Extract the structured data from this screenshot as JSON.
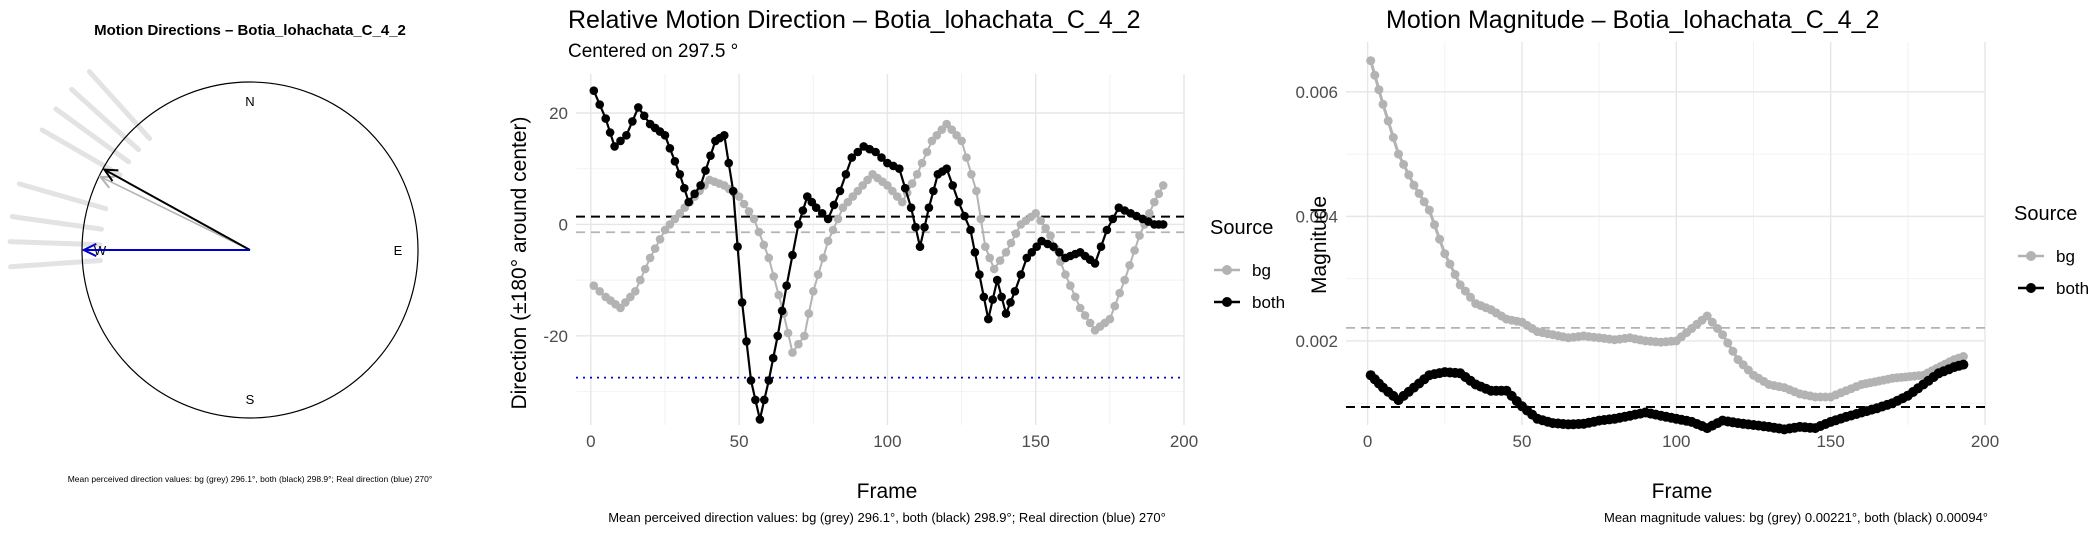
{
  "colors": {
    "bg": "#b3b3b3",
    "both": "#000000",
    "real": "#0000cc",
    "compass_ray": "#e3e3e3"
  },
  "panels": {
    "compass": {
      "title": "Motion Directions – Botia_lohachata_C_4_2",
      "labels": {
        "n": "N",
        "e": "E",
        "s": "S",
        "w": "W"
      },
      "caption": "Mean perceived direction values: bg (grey) 296.1°, both (black) 298.9°; Real direction (blue) 270°"
    },
    "direction": {
      "title": "Relative Motion Direction – Botia_lohachata_C_4_2",
      "subtitle": "Centered on  297.5 °",
      "caption": "Mean perceived direction values: bg (grey) 296.1°, both (black) 298.9°; Real direction (blue) 270°"
    },
    "magnitude": {
      "title": "Motion Magnitude – Botia_lohachata_C_4_2",
      "caption": "Mean magnitude values: bg (grey) 0.00221°, both (black) 0.00094°"
    }
  },
  "legend": {
    "title": "Source",
    "items": [
      "bg",
      "both"
    ]
  },
  "chart_data": [
    {
      "type": "compass",
      "title": "Motion Directions – Botia_lohachata_C_4_2",
      "arrows_deg": [
        {
          "name": "bg",
          "direction": 296.1
        },
        {
          "name": "both",
          "direction": 298.9
        },
        {
          "name": "real",
          "direction": 270
        }
      ],
      "background_rays_deg": [
        300,
        306,
        312,
        318,
        286,
        278,
        272,
        266
      ]
    },
    {
      "type": "line",
      "title": "Relative Motion Direction – Botia_lohachata_C_4_2",
      "subtitle": "Centered on  297.5 °",
      "xlabel": "Frame",
      "ylabel": "Direction (±180° around center)",
      "xlim": [
        -5,
        200
      ],
      "ylim": [
        -36,
        27
      ],
      "xticks": [
        0,
        50,
        100,
        150,
        200
      ],
      "yticks": [
        -20,
        0,
        20
      ],
      "series": [
        {
          "name": "bg",
          "points": [
            [
              1,
              -11
            ],
            [
              5,
              -13
            ],
            [
              10,
              -15
            ],
            [
              15,
              -12
            ],
            [
              20,
              -6
            ],
            [
              25,
              -1
            ],
            [
              30,
              2
            ],
            [
              35,
              5
            ],
            [
              40,
              8
            ],
            [
              45,
              7
            ],
            [
              50,
              5
            ],
            [
              55,
              1
            ],
            [
              60,
              -6
            ],
            [
              65,
              -16
            ],
            [
              68,
              -23
            ],
            [
              72,
              -20
            ],
            [
              75,
              -12
            ],
            [
              80,
              -3
            ],
            [
              85,
              3
            ],
            [
              90,
              6
            ],
            [
              95,
              9
            ],
            [
              100,
              7
            ],
            [
              105,
              4
            ],
            [
              110,
              9
            ],
            [
              115,
              15
            ],
            [
              120,
              18
            ],
            [
              125,
              15
            ],
            [
              130,
              6
            ],
            [
              133,
              -4
            ],
            [
              136,
              -8
            ],
            [
              140,
              -5
            ],
            [
              145,
              0
            ],
            [
              150,
              2
            ],
            [
              155,
              -2
            ],
            [
              160,
              -9
            ],
            [
              165,
              -15
            ],
            [
              170,
              -19
            ],
            [
              175,
              -17
            ],
            [
              180,
              -10
            ],
            [
              185,
              -2
            ],
            [
              190,
              4
            ],
            [
              193,
              7
            ]
          ]
        },
        {
          "name": "both",
          "points": [
            [
              1,
              24
            ],
            [
              5,
              19
            ],
            [
              8,
              14
            ],
            [
              12,
              16
            ],
            [
              16,
              21
            ],
            [
              20,
              18
            ],
            [
              25,
              16
            ],
            [
              30,
              9
            ],
            [
              33,
              4
            ],
            [
              37,
              7
            ],
            [
              42,
              15
            ],
            [
              45,
              16
            ],
            [
              48,
              6
            ],
            [
              51,
              -14
            ],
            [
              54,
              -28
            ],
            [
              57,
              -35
            ],
            [
              60,
              -28
            ],
            [
              63,
              -20
            ],
            [
              66,
              -11
            ],
            [
              70,
              0
            ],
            [
              73,
              5
            ],
            [
              76,
              3
            ],
            [
              80,
              1
            ],
            [
              84,
              6
            ],
            [
              88,
              12
            ],
            [
              92,
              14
            ],
            [
              96,
              13
            ],
            [
              100,
              11
            ],
            [
              104,
              10
            ],
            [
              108,
              3
            ],
            [
              111,
              -4
            ],
            [
              114,
              3
            ],
            [
              117,
              9
            ],
            [
              120,
              10
            ],
            [
              124,
              4
            ],
            [
              128,
              -1
            ],
            [
              131,
              -9
            ],
            [
              134,
              -17
            ],
            [
              137,
              -10
            ],
            [
              140,
              -16
            ],
            [
              143,
              -12
            ],
            [
              147,
              -6
            ],
            [
              152,
              -3
            ],
            [
              156,
              -4
            ],
            [
              160,
              -6
            ],
            [
              165,
              -5
            ],
            [
              170,
              -7
            ],
            [
              174,
              -1
            ],
            [
              178,
              3
            ],
            [
              182,
              2
            ],
            [
              186,
              1
            ],
            [
              190,
              0
            ],
            [
              193,
              0
            ]
          ]
        }
      ],
      "hlines": [
        {
          "name": "both-mean",
          "y": 1.4,
          "color": "#000000",
          "style": "dashed"
        },
        {
          "name": "bg-mean",
          "y": -1.4,
          "color": "#b3b3b3",
          "style": "dashed"
        },
        {
          "name": "real",
          "y": -27.5,
          "color": "#0000cc",
          "style": "dotted"
        }
      ]
    },
    {
      "type": "line",
      "title": "Motion Magnitude – Botia_lohachata_C_4_2",
      "xlabel": "Frame",
      "ylabel": "Magnitude",
      "xlim": [
        -7,
        200
      ],
      "ylim": [
        0.00065,
        0.0068
      ],
      "xticks": [
        0,
        50,
        100,
        150,
        200
      ],
      "yticks": [
        0.002,
        0.004,
        0.006
      ],
      "ytick_labels": [
        "0.002",
        "0.004",
        "0.006"
      ],
      "series": [
        {
          "name": "bg",
          "points": [
            [
              1,
              0.0065
            ],
            [
              5,
              0.0058
            ],
            [
              10,
              0.005
            ],
            [
              15,
              0.0045
            ],
            [
              20,
              0.0041
            ],
            [
              25,
              0.0034
            ],
            [
              30,
              0.0029
            ],
            [
              35,
              0.0026
            ],
            [
              40,
              0.0025
            ],
            [
              45,
              0.00235
            ],
            [
              50,
              0.0023
            ],
            [
              55,
              0.00215
            ],
            [
              60,
              0.0021
            ],
            [
              65,
              0.00205
            ],
            [
              70,
              0.00208
            ],
            [
              75,
              0.00205
            ],
            [
              80,
              0.00202
            ],
            [
              85,
              0.00205
            ],
            [
              90,
              0.002
            ],
            [
              95,
              0.00198
            ],
            [
              100,
              0.002
            ],
            [
              105,
              0.0022
            ],
            [
              110,
              0.0024
            ],
            [
              115,
              0.0021
            ],
            [
              120,
              0.0017
            ],
            [
              125,
              0.00145
            ],
            [
              130,
              0.0013
            ],
            [
              135,
              0.00125
            ],
            [
              140,
              0.00115
            ],
            [
              145,
              0.0011
            ],
            [
              150,
              0.0011
            ],
            [
              155,
              0.0012
            ],
            [
              160,
              0.0013
            ],
            [
              170,
              0.0014
            ],
            [
              180,
              0.00145
            ],
            [
              190,
              0.0017
            ],
            [
              193,
              0.00175
            ]
          ]
        },
        {
          "name": "both",
          "points": [
            [
              1,
              0.00145
            ],
            [
              5,
              0.00125
            ],
            [
              10,
              0.00105
            ],
            [
              15,
              0.00125
            ],
            [
              20,
              0.00145
            ],
            [
              25,
              0.0015
            ],
            [
              30,
              0.00148
            ],
            [
              35,
              0.0013
            ],
            [
              40,
              0.0012
            ],
            [
              45,
              0.0012
            ],
            [
              50,
              0.00095
            ],
            [
              55,
              0.00075
            ],
            [
              60,
              0.00068
            ],
            [
              65,
              0.00066
            ],
            [
              70,
              0.00067
            ],
            [
              75,
              0.00072
            ],
            [
              80,
              0.00075
            ],
            [
              85,
              0.0008
            ],
            [
              90,
              0.00085
            ],
            [
              95,
              0.0008
            ],
            [
              100,
              0.00075
            ],
            [
              105,
              0.0007
            ],
            [
              110,
              0.0006
            ],
            [
              115,
              0.00072
            ],
            [
              120,
              0.00068
            ],
            [
              125,
              0.00065
            ],
            [
              130,
              0.00062
            ],
            [
              135,
              0.00058
            ],
            [
              140,
              0.00062
            ],
            [
              145,
              0.0006
            ],
            [
              150,
              0.0007
            ],
            [
              155,
              0.00078
            ],
            [
              160,
              0.00085
            ],
            [
              165,
              0.00092
            ],
            [
              170,
              0.001
            ],
            [
              175,
              0.00112
            ],
            [
              180,
              0.0013
            ],
            [
              185,
              0.00148
            ],
            [
              190,
              0.00158
            ],
            [
              193,
              0.00162
            ]
          ]
        }
      ],
      "hlines": [
        {
          "name": "bg-mean",
          "y": 0.00221,
          "color": "#b3b3b3",
          "style": "dashed"
        },
        {
          "name": "both-mean",
          "y": 0.00094,
          "color": "#000000",
          "style": "dashed"
        }
      ]
    }
  ]
}
